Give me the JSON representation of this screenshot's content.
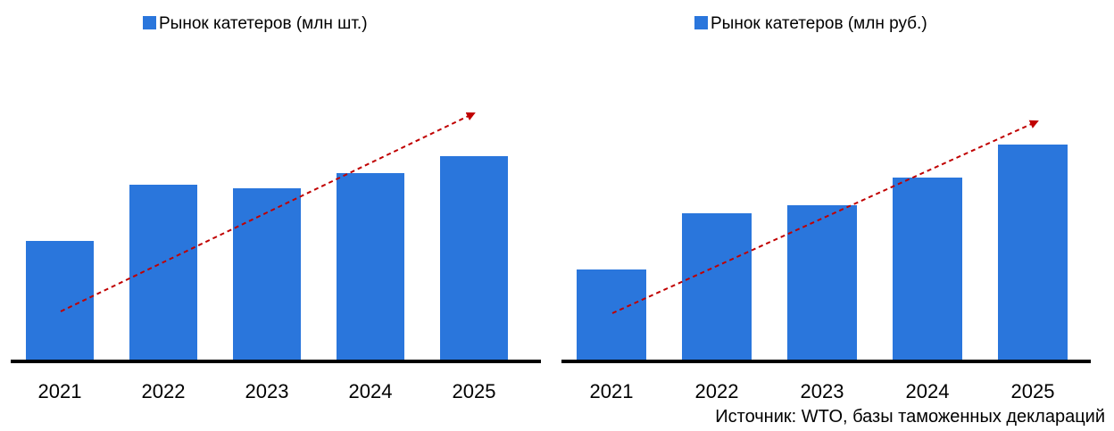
{
  "colors": {
    "bar": "#2a76dc",
    "baseline": "#000000",
    "trend": "#c00000",
    "text": "#000000"
  },
  "source_text": "Источник: WTO, базы таможенных деклараций",
  "chart_data": [
    {
      "type": "bar",
      "title": "",
      "xlabel": "",
      "ylabel": "",
      "legend": {
        "position": "top",
        "entries": [
          "Рынок катетеров (млн шт.)"
        ]
      },
      "grid": false,
      "value_axis_shown": false,
      "categories": [
        "2021",
        "2022",
        "2023",
        "2024",
        "2025"
      ],
      "series": [
        {
          "name": "Рынок катетеров (млн шт.)",
          "values": [
            1.33,
            1.96,
            1.92,
            2.09,
            2.28
          ]
        }
      ],
      "ylim": [
        0,
        4
      ],
      "trend_arrow": {
        "style": "dashed",
        "direction": "up"
      }
    },
    {
      "type": "bar",
      "title": "",
      "xlabel": "",
      "ylabel": "",
      "legend": {
        "position": "top",
        "entries": [
          "Рынок катетеров (млн руб.)"
        ]
      },
      "grid": false,
      "value_axis_shown": false,
      "categories": [
        "2021",
        "2022",
        "2023",
        "2024",
        "2025"
      ],
      "series": [
        {
          "name": "Рынок катетеров (млн руб.)",
          "values": [
            1.01,
            1.64,
            1.73,
            2.04,
            2.41
          ]
        }
      ],
      "ylim": [
        0,
        4
      ],
      "trend_arrow": {
        "style": "dashed",
        "direction": "up"
      }
    }
  ]
}
